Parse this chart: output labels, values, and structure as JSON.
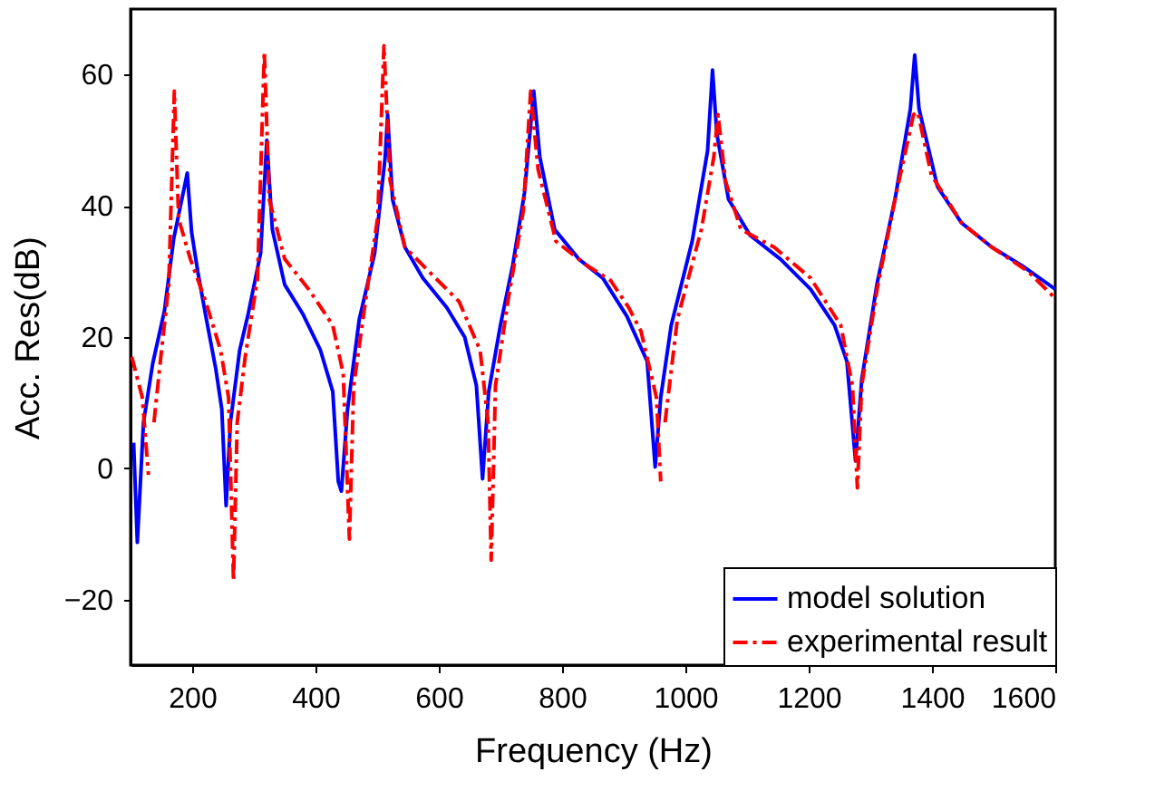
{
  "chart_data": {
    "type": "line",
    "xlabel": "Frequency (Hz)",
    "ylabel": "Acc. Res(dB)",
    "xlim": [
      100,
      1600
    ],
    "ylim": [
      -30,
      70
    ],
    "xticks": [
      200,
      400,
      600,
      800,
      1000,
      1200,
      1400,
      1600
    ],
    "yticks": [
      -20,
      0,
      20,
      40,
      60
    ],
    "grid": false,
    "legend": "bottom right",
    "series": [
      {
        "name": "model solution",
        "color": "#0000ff",
        "line_style": "solid",
        "x": [
          105,
          111,
          121,
          136,
          155,
          170,
          192,
          199,
          209,
          223,
          238,
          248,
          255,
          262,
          277,
          291,
          311,
          321,
          330,
          350,
          379,
          408,
          428,
          437,
          442,
          452,
          471,
          496,
          513,
          517,
          525,
          545,
          574,
          613,
          642,
          661,
          671,
          681,
          700,
          720,
          739,
          754,
          764,
          788,
          827,
          866,
          905,
          938,
          951,
          960,
          977,
          1011,
          1036,
          1044,
          1051,
          1070,
          1105,
          1154,
          1203,
          1242,
          1262,
          1276,
          1286,
          1311,
          1340,
          1365,
          1372,
          1379,
          1409,
          1448,
          1497,
          1546,
          1600
        ],
        "values": [
          3.9,
          -11.3,
          7,
          16,
          24,
          35,
          45,
          36,
          30,
          22.7,
          15.3,
          9,
          -5.7,
          7,
          18,
          23.6,
          32.8,
          50,
          36.4,
          28,
          23.6,
          18,
          11.7,
          -2,
          -3.5,
          9,
          22.7,
          32.8,
          47.4,
          53.9,
          41,
          33.7,
          29,
          24.5,
          20,
          12.6,
          -1.6,
          11.7,
          21.8,
          31,
          42,
          57.5,
          47.4,
          36.4,
          31.9,
          29,
          23.2,
          16.3,
          0.2,
          10.8,
          21.8,
          34.6,
          48.4,
          60.7,
          51,
          41,
          35.5,
          31.9,
          27.3,
          21.8,
          16.3,
          1.1,
          13.5,
          28.2,
          41,
          54.8,
          63,
          54.8,
          42.9,
          37.4,
          33.7,
          30.9,
          27.3
        ]
      },
      {
        "name": "experimental result",
        "color": "#ff0000",
        "line_style": "dashed",
        "x": [
          102,
          119,
          129,
          130,
          138,
          148,
          162,
          171,
          178,
          197,
          222,
          246,
          259,
          267,
          273,
          286,
          306,
          317,
          325,
          350,
          389,
          428,
          445,
          455,
          462,
          481,
          501,
          511,
          521,
          545,
          584,
          633,
          667,
          680,
          685,
          692,
          712,
          737,
          749,
          761,
          790,
          839,
          879,
          908,
          928,
          953,
          960,
          962,
          967,
          987,
          1026,
          1046,
          1053,
          1065,
          1090,
          1144,
          1203,
          1252,
          1271,
          1279,
          1286,
          1311,
          1340,
          1370,
          1377,
          1399,
          1448,
          1497,
          1556,
          1600
        ],
        "values": [
          17,
          10.8,
          -1,
          null,
          7,
          16,
          28,
          57.5,
          38,
          31.9,
          25.4,
          18,
          10.8,
          -17.2,
          7,
          17,
          29,
          63.5,
          41,
          31.9,
          27.3,
          21.8,
          14.4,
          -10.8,
          12.6,
          25.4,
          38.3,
          64.4,
          43.8,
          33.7,
          30,
          25.4,
          18,
          7,
          -14,
          12.6,
          25.4,
          39.2,
          57.5,
          45.6,
          34.6,
          31,
          28.6,
          24.5,
          20.9,
          10.8,
          -2,
          null,
          7,
          22.7,
          36.4,
          47.4,
          53.9,
          43.8,
          36.4,
          33.7,
          29,
          21.8,
          12.6,
          -3,
          12.6,
          27.3,
          41,
          53.9,
          54.3,
          44.7,
          37.4,
          33.7,
          30,
          25.9
        ]
      }
    ]
  }
}
